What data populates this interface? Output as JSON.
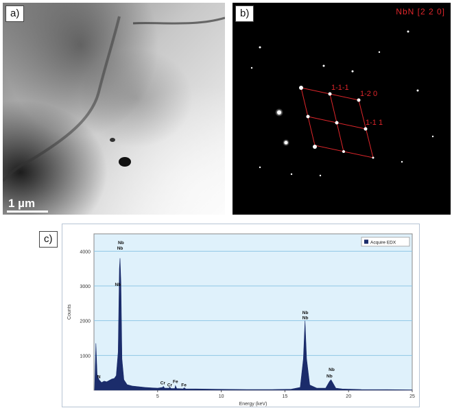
{
  "panels": {
    "a": {
      "tag": "a)",
      "scale_label": "1 µm"
    },
    "b": {
      "tag": "b)",
      "zone_axis": "NbN [2 2 0]",
      "spot_labels": [
        "1-1-1",
        "1-2 0",
        "1-1 1"
      ]
    },
    "c": {
      "tag": "c)"
    }
  },
  "colors": {
    "spectrum_fill": "#1b2c6b",
    "plot_bg": "#dff1fb",
    "gridline": "#8fc6e6",
    "diffraction_lines": "#e0262b"
  },
  "chart_data": {
    "type": "area",
    "title": "",
    "xlabel": "Energy (keV)",
    "ylabel": "Counts",
    "xlim": [
      0,
      25
    ],
    "ylim": [
      0,
      4500
    ],
    "x_ticks": [
      5,
      10,
      15,
      20,
      25
    ],
    "y_ticks": [
      1000,
      2000,
      3000,
      4000
    ],
    "grid": "horizontal",
    "legend": {
      "position": "top-right",
      "label": "Acquire EDX"
    },
    "series": [
      {
        "name": "Acquire EDX",
        "points": [
          [
            0.05,
            0
          ],
          [
            0.15,
            1350
          ],
          [
            0.25,
            450
          ],
          [
            0.4,
            300
          ],
          [
            0.6,
            220
          ],
          [
            0.8,
            260
          ],
          [
            1.0,
            240
          ],
          [
            1.2,
            280
          ],
          [
            1.4,
            320
          ],
          [
            1.6,
            340
          ],
          [
            1.75,
            420
          ],
          [
            1.9,
            1100
          ],
          [
            2.0,
            3500
          ],
          [
            2.05,
            3800
          ],
          [
            2.12,
            3100
          ],
          [
            2.2,
            900
          ],
          [
            2.35,
            300
          ],
          [
            2.6,
            160
          ],
          [
            3.0,
            120
          ],
          [
            3.5,
            100
          ],
          [
            4.0,
            80
          ],
          [
            4.5,
            70
          ],
          [
            5.0,
            60
          ],
          [
            5.4,
            80
          ],
          [
            5.45,
            110
          ],
          [
            5.55,
            60
          ],
          [
            5.9,
            60
          ],
          [
            5.95,
            90
          ],
          [
            6.05,
            50
          ],
          [
            6.35,
            50
          ],
          [
            6.4,
            130
          ],
          [
            6.5,
            50
          ],
          [
            7.0,
            40
          ],
          [
            7.1,
            70
          ],
          [
            7.2,
            40
          ],
          [
            8.0,
            35
          ],
          [
            10.0,
            25
          ],
          [
            12.0,
            20
          ],
          [
            14.0,
            20
          ],
          [
            15.5,
            30
          ],
          [
            16.2,
            80
          ],
          [
            16.45,
            900
          ],
          [
            16.58,
            2000
          ],
          [
            16.7,
            900
          ],
          [
            16.95,
            150
          ],
          [
            17.5,
            60
          ],
          [
            18.2,
            60
          ],
          [
            18.5,
            250
          ],
          [
            18.62,
            300
          ],
          [
            18.75,
            220
          ],
          [
            19.0,
            60
          ],
          [
            19.5,
            35
          ],
          [
            21.0,
            20
          ],
          [
            23.0,
            15
          ],
          [
            25.0,
            10
          ]
        ]
      }
    ],
    "annotations": [
      {
        "text": "Nb",
        "x": 2.12,
        "y": 4200
      },
      {
        "text": "Nb",
        "x": 2.05,
        "y": 4050
      },
      {
        "text": "Nb",
        "x": 1.88,
        "y": 3000
      },
      {
        "text": "N",
        "x": 0.39,
        "y": 350
      },
      {
        "text": "Cr",
        "x": 5.41,
        "y": 170
      },
      {
        "text": "Cr",
        "x": 5.95,
        "y": 110
      },
      {
        "text": "Fe",
        "x": 6.4,
        "y": 210
      },
      {
        "text": "Fe",
        "x": 7.06,
        "y": 110
      },
      {
        "text": "Nb",
        "x": 16.6,
        "y": 2190
      },
      {
        "text": "Nb",
        "x": 16.6,
        "y": 2040
      },
      {
        "text": "Nb",
        "x": 18.67,
        "y": 550
      },
      {
        "text": "Nb",
        "x": 18.5,
        "y": 370
      }
    ]
  }
}
